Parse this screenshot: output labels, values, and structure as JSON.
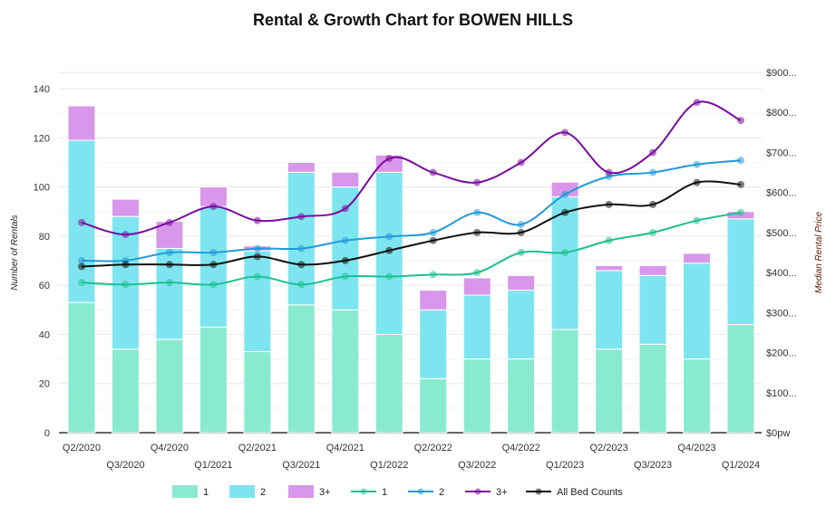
{
  "chart_data": {
    "type": "bar+line",
    "title": "Rental & Growth Chart for BOWEN HILLS",
    "ylabel": "Number of Rentals",
    "y2label": "Median Rental Price",
    "ylim": [
      0,
      140
    ],
    "y2lim": [
      0,
      900
    ],
    "yticks": [
      "0",
      "20",
      "40",
      "60",
      "80",
      "100",
      "120",
      "140"
    ],
    "y2ticks": [
      "$0pw",
      "$100...",
      "$200...",
      "$300...",
      "$400...",
      "$500...",
      "$600...",
      "$700...",
      "$800...",
      "$900..."
    ],
    "grid": true,
    "legend": "bottom",
    "categories": [
      "Q2/2020",
      "Q3/2020",
      "Q4/2020",
      "Q1/2021",
      "Q2/2021",
      "Q3/2021",
      "Q4/2021",
      "Q1/2022",
      "Q2/2022",
      "Q3/2022",
      "Q4/2022",
      "Q1/2023",
      "Q2/2023",
      "Q3/2023",
      "Q4/2023",
      "Q1/2024"
    ],
    "bar_series": [
      {
        "name": "1",
        "color": "#8aead0",
        "values": [
          53,
          34,
          38,
          43,
          33,
          52,
          50,
          40,
          22,
          30,
          30,
          42,
          34,
          36,
          30,
          44
        ]
      },
      {
        "name": "2",
        "color": "#7ee5f0",
        "values": [
          66,
          54,
          37,
          49,
          41,
          54,
          50,
          66,
          28,
          26,
          28,
          54,
          32,
          28,
          39,
          43
        ]
      },
      {
        "name": "3+",
        "color": "#d897ea",
        "values": [
          14,
          7,
          11,
          8,
          2,
          4,
          6,
          7,
          8,
          7,
          6,
          6,
          2,
          4,
          4,
          3
        ]
      }
    ],
    "line_series": [
      {
        "name": "1",
        "color": "#1fbf8f",
        "values": [
          375,
          370,
          375,
          370,
          390,
          370,
          390,
          390,
          395,
          400,
          450,
          450,
          480,
          500,
          530,
          550
        ]
      },
      {
        "name": "2",
        "color": "#229ad8",
        "values": [
          430,
          430,
          450,
          450,
          460,
          460,
          480,
          490,
          500,
          550,
          520,
          595,
          640,
          650,
          670,
          680
        ]
      },
      {
        "name": "3+",
        "color": "#7a0c9e",
        "values": [
          525,
          495,
          525,
          565,
          530,
          540,
          560,
          685,
          650,
          625,
          675,
          750,
          650,
          700,
          825,
          780
        ]
      },
      {
        "name": "All Bed Counts",
        "color": "#111111",
        "values": [
          415,
          420,
          420,
          420,
          440,
          420,
          430,
          455,
          480,
          500,
          500,
          550,
          570,
          570,
          625,
          620
        ]
      }
    ]
  }
}
